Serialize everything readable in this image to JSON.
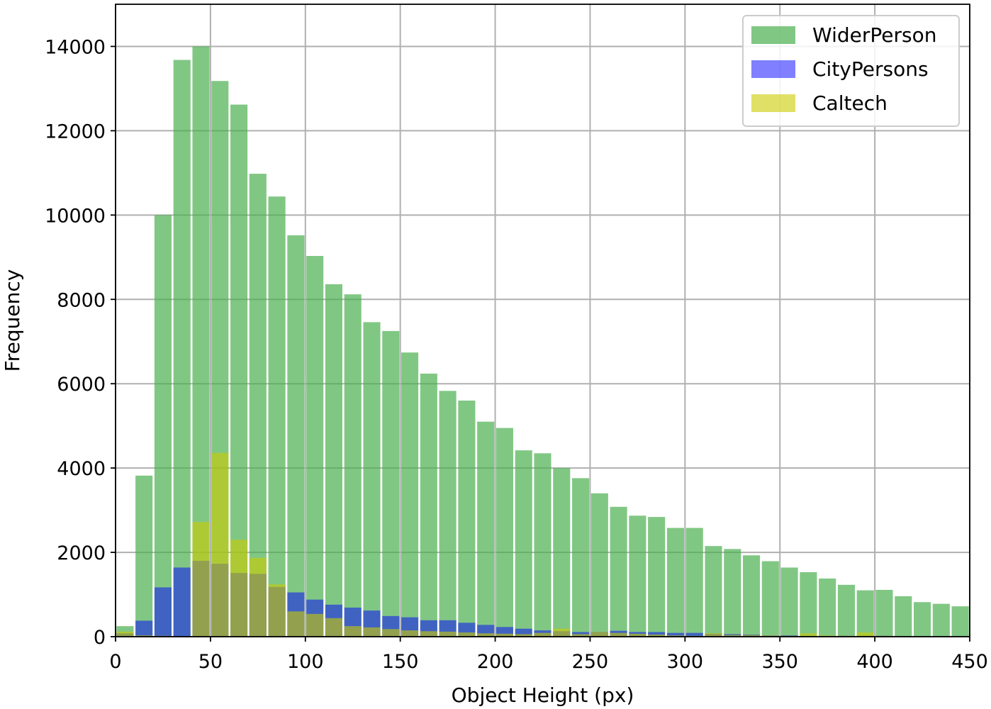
{
  "chart_data": {
    "type": "bar",
    "title": "",
    "xlabel": "Object Height (px)",
    "ylabel": "Frequency",
    "xlim": [
      0,
      450
    ],
    "ylim": [
      0,
      15000
    ],
    "bin_width": 10,
    "xticks": [
      "0",
      "50",
      "100",
      "150",
      "200",
      "250",
      "300",
      "350",
      "400",
      "450"
    ],
    "xtick_values": [
      0,
      50,
      100,
      150,
      200,
      250,
      300,
      350,
      400,
      450
    ],
    "yticks": [
      "0",
      "2000",
      "4000",
      "6000",
      "8000",
      "10000",
      "12000",
      "14000"
    ],
    "ytick_values": [
      0,
      2000,
      4000,
      6000,
      8000,
      10000,
      12000,
      14000
    ],
    "grid": true,
    "legend_position": "top-right",
    "bins": [
      0,
      10,
      20,
      30,
      40,
      50,
      60,
      70,
      80,
      90,
      100,
      110,
      120,
      130,
      140,
      150,
      160,
      170,
      180,
      190,
      200,
      210,
      220,
      230,
      240,
      250,
      260,
      270,
      280,
      290,
      300,
      310,
      320,
      330,
      340,
      350,
      360,
      370,
      380,
      390,
      400,
      410,
      420,
      430,
      440
    ],
    "series": [
      {
        "name": "WiderPerson",
        "color": "#4caf50",
        "opacity": 0.7,
        "values": [
          250,
          3820,
          10000,
          13680,
          14000,
          13180,
          12620,
          10980,
          10440,
          9520,
          9030,
          8360,
          8120,
          7460,
          7250,
          6740,
          6240,
          5830,
          5600,
          5100,
          4950,
          4420,
          4350,
          4000,
          3760,
          3400,
          3080,
          2870,
          2840,
          2580,
          2580,
          2150,
          2080,
          1930,
          1790,
          1640,
          1530,
          1380,
          1230,
          1100,
          1110,
          960,
          820,
          780,
          720
        ]
      },
      {
        "name": "CityPersons",
        "color": "#0000ff",
        "opacity": 0.5,
        "values": [
          80,
          380,
          1170,
          1640,
          1800,
          1730,
          1510,
          1490,
          1180,
          1050,
          880,
          760,
          690,
          620,
          490,
          460,
          390,
          390,
          330,
          280,
          230,
          190,
          150,
          130,
          110,
          110,
          140,
          110,
          110,
          90,
          90,
          70,
          60,
          50,
          30,
          30,
          20,
          20,
          20,
          20,
          20,
          10,
          10,
          10,
          10
        ]
      },
      {
        "name": "Caltech",
        "color": "#cccc00",
        "opacity": 0.6,
        "values": [
          120,
          30,
          20,
          10,
          2720,
          4360,
          2300,
          1870,
          1240,
          600,
          540,
          440,
          250,
          220,
          180,
          150,
          130,
          120,
          100,
          80,
          70,
          60,
          90,
          190,
          60,
          110,
          90,
          70,
          50,
          30,
          20,
          80,
          40,
          40,
          30,
          20,
          80,
          30,
          20,
          100,
          20,
          10,
          10,
          10,
          10
        ]
      }
    ]
  }
}
